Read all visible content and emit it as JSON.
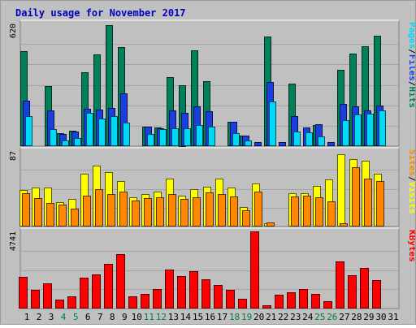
{
  "title": "Daily usage for November 2017",
  "colors": {
    "background": "#c0c0c0",
    "title": "#0000c0",
    "hits": "#00805a",
    "files": "#1a3fe0",
    "pages": "#00d8f8",
    "visits": "#ffff00",
    "sites": "#ff8800",
    "kbytes": "#ff0000",
    "weekend_label": "#008040",
    "weekday_label": "#000000"
  },
  "chart_data": {
    "type": "bar",
    "title": "Daily usage for November 2017",
    "x": [
      1,
      2,
      3,
      4,
      5,
      6,
      7,
      8,
      9,
      10,
      11,
      12,
      13,
      14,
      15,
      16,
      17,
      18,
      19,
      20,
      21,
      22,
      23,
      24,
      25,
      26,
      27,
      28,
      29,
      30,
      31
    ],
    "weekend_days": [
      4,
      5,
      11,
      12,
      18,
      19,
      25,
      26
    ],
    "panels": [
      {
        "name": "hits-files-pages",
        "max_label": "620",
        "ylim": [
          0,
          620
        ],
        "legend": [
          "Pages",
          "/",
          "Files",
          "/",
          "Hits"
        ],
        "series": [
          {
            "name": "Hits",
            "values": [
              480,
              0,
              305,
              65,
              80,
              375,
              465,
              610,
              500,
              0,
              100,
              95,
              350,
              310,
              485,
              330,
              0,
              125,
              55,
              0,
              555,
              0,
              315,
              0,
              105,
              0,
              385,
              470,
              505,
              560,
              0
            ]
          },
          {
            "name": "Files",
            "values": [
              230,
              0,
              180,
              60,
              75,
              190,
              185,
              195,
              265,
              0,
              100,
              90,
              180,
              170,
              200,
              175,
              0,
              125,
              55,
              20,
              325,
              20,
              150,
              95,
              110,
              20,
              215,
              200,
              180,
              205,
              0
            ]
          },
          {
            "name": "Pages",
            "values": [
              150,
              0,
              85,
              30,
              40,
              170,
              140,
              150,
              120,
              0,
              60,
              85,
              90,
              90,
              105,
              100,
              0,
              65,
              30,
              0,
              225,
              0,
              75,
              70,
              50,
              0,
              130,
              160,
              165,
              180,
              0
            ]
          }
        ]
      },
      {
        "name": "visits-sites",
        "max_label": "87",
        "ylim": [
          0,
          87
        ],
        "legend": [
          "Sites",
          "/",
          "Visits"
        ],
        "series": [
          {
            "name": "Visits",
            "values": [
              42,
              45,
              45,
              28,
              32,
              61,
              70,
              63,
              52,
              34,
              37,
              40,
              55,
              36,
              43,
              46,
              55,
              45,
              22,
              50,
              4,
              0,
              38,
              38,
              47,
              54,
              83,
              78,
              76,
              61,
              0
            ]
          },
          {
            "name": "Sites",
            "values": [
              38,
              33,
              27,
              25,
              21,
              36,
              43,
              37,
              40,
              30,
              33,
              34,
              37,
              32,
              34,
              39,
              37,
              35,
              19,
              40,
              5,
              0,
              35,
              36,
              34,
              29,
              4,
              68,
              55,
              52,
              0
            ]
          }
        ]
      },
      {
        "name": "kbytes",
        "max_label": "4741",
        "ylim": [
          0,
          4741
        ],
        "legend": [
          "KBytes"
        ],
        "series": [
          {
            "name": "KBytes",
            "values": [
              1950,
              1150,
              1550,
              560,
              740,
              1920,
              2120,
              2740,
              3360,
              740,
              900,
              1220,
              2400,
              2000,
              2310,
              1800,
              1450,
              1150,
              600,
              4741,
              220,
              850,
              1000,
              1180,
              920,
              430,
              2900,
              2070,
              2490,
              1770,
              0
            ]
          }
        ]
      }
    ]
  }
}
